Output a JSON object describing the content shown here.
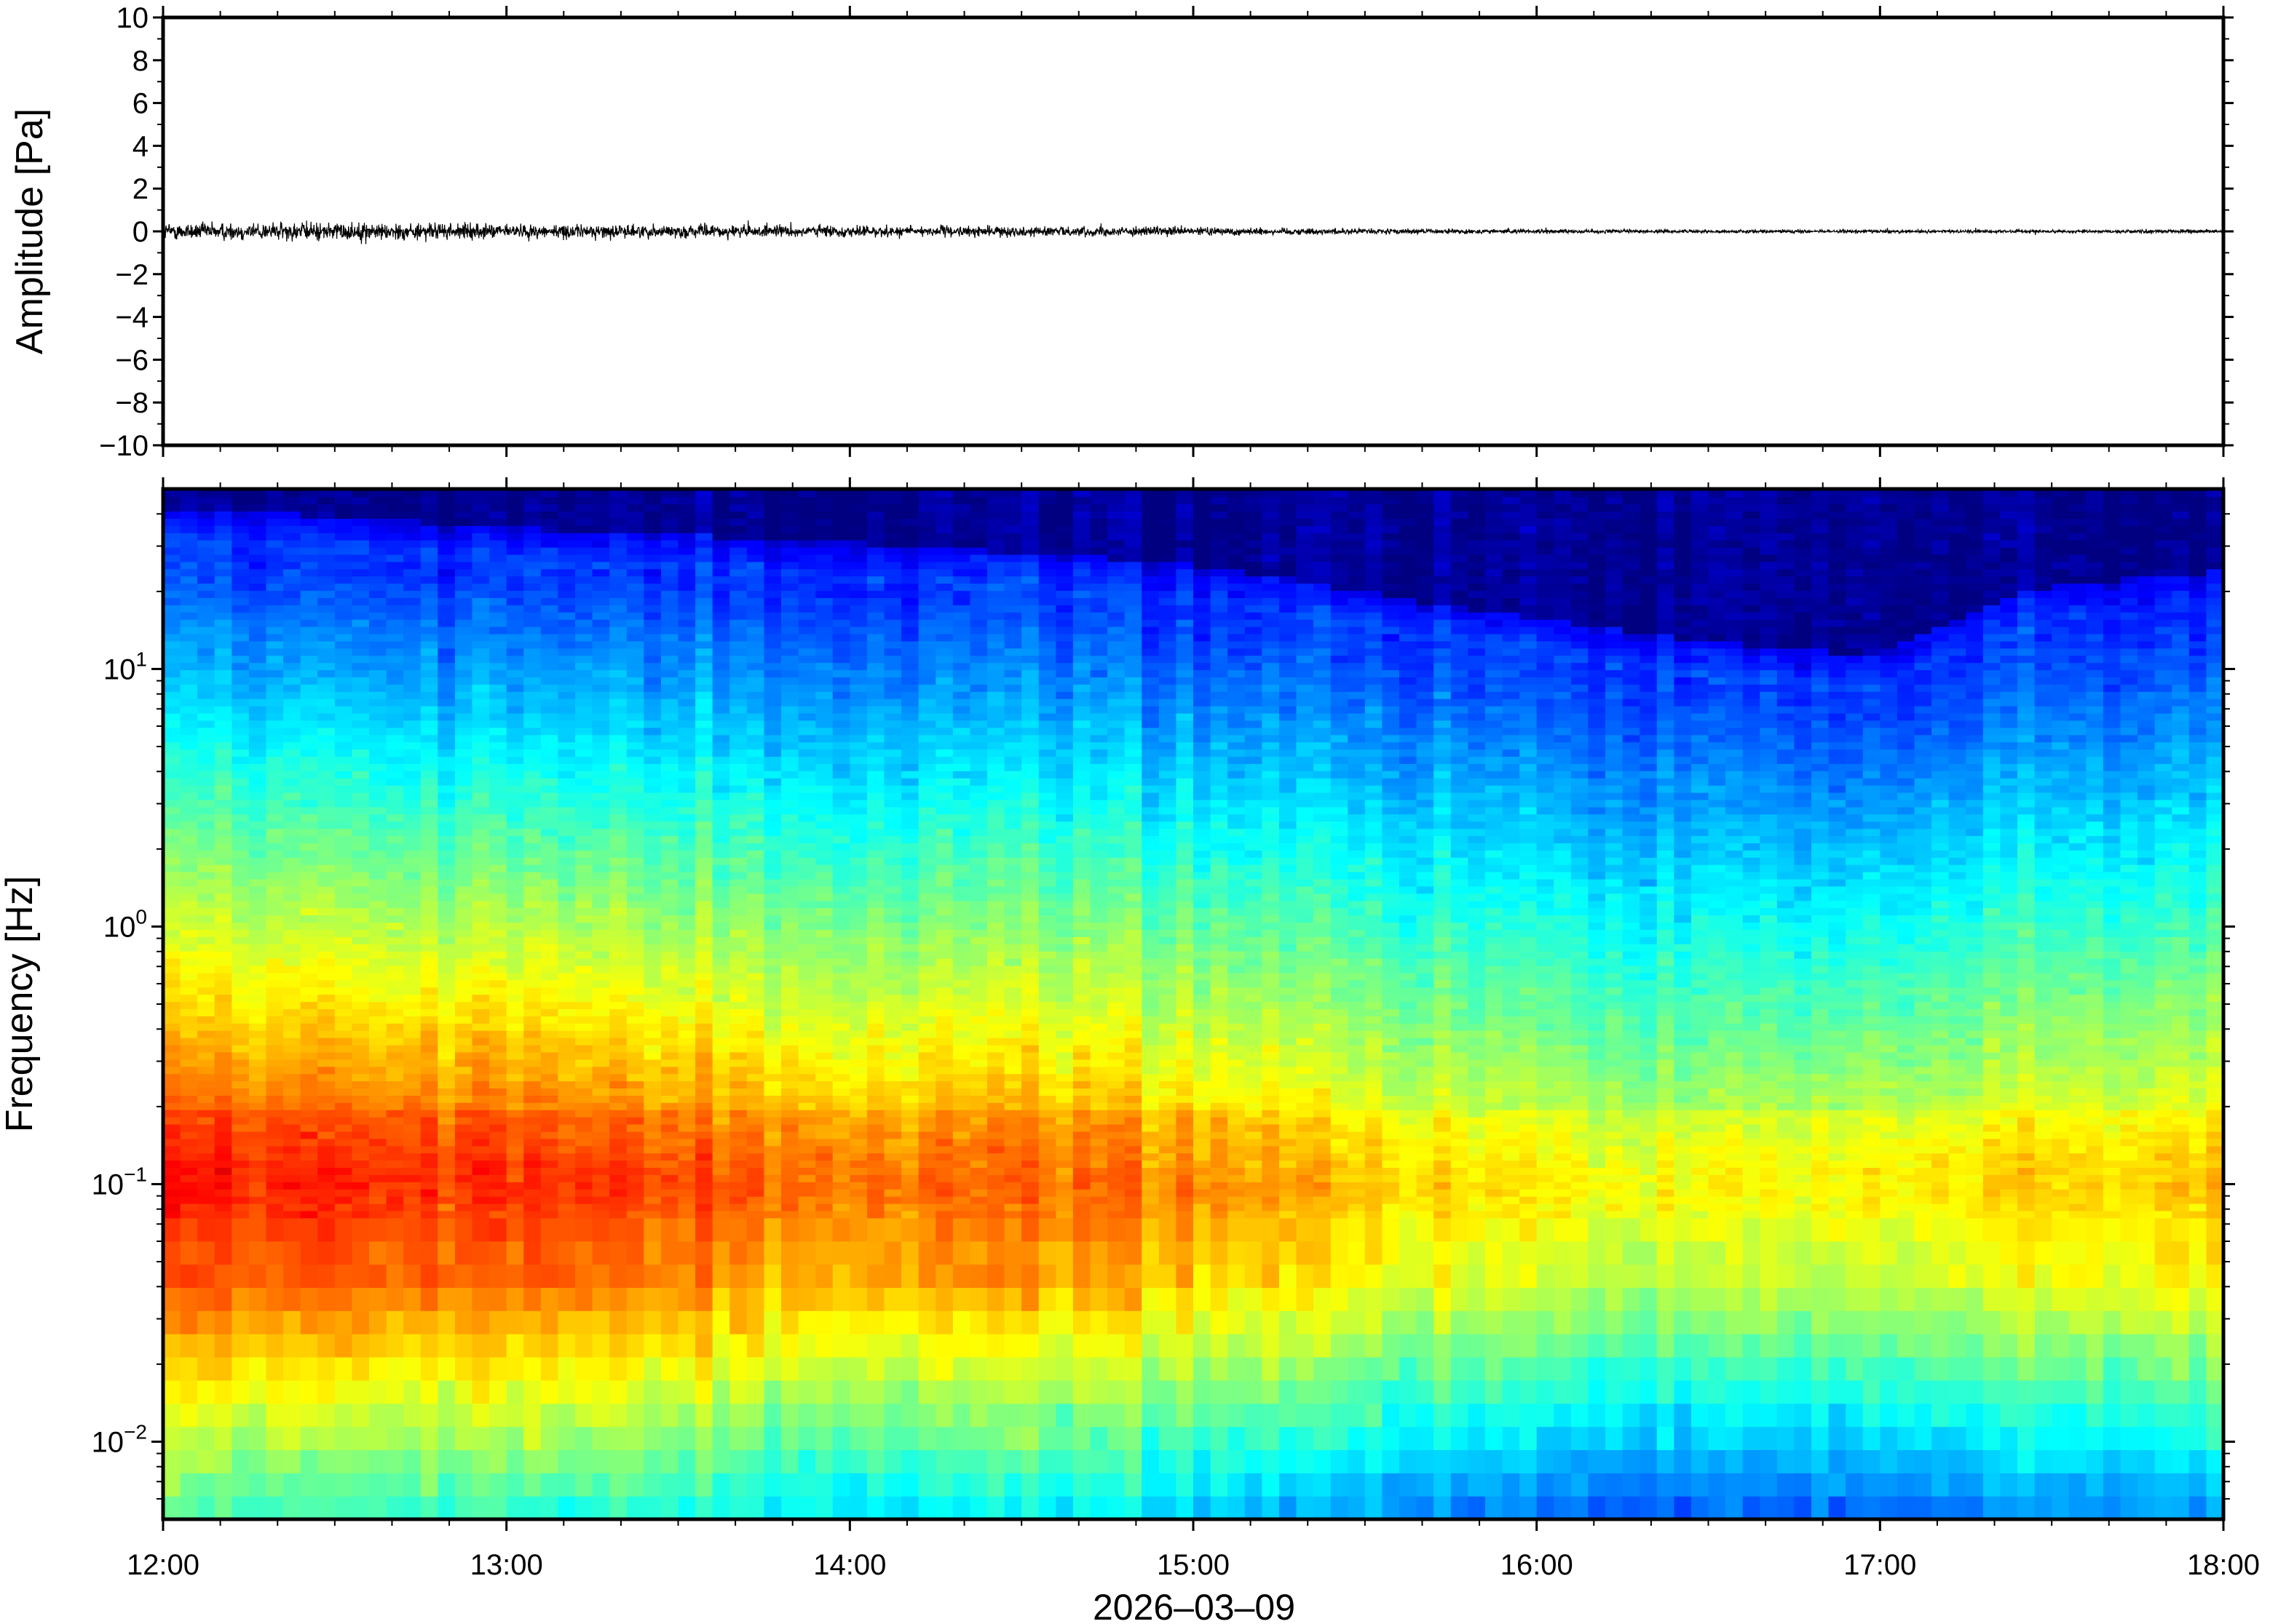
{
  "chart_data": [
    {
      "type": "line",
      "panel": "waveform",
      "ylabel": "Amplitude [Pa]",
      "ylim": [
        -10,
        10
      ],
      "y_ticks": [
        10,
        8,
        6,
        4,
        2,
        0,
        -2,
        -4,
        -6,
        -8,
        -10
      ],
      "y_tick_labels": [
        "10",
        "8",
        "6",
        "4",
        "2",
        "0",
        "−2",
        "−4",
        "−6",
        "−8",
        "−10"
      ],
      "x_range": [
        "12:00",
        "18:00"
      ],
      "series": [
        {
          "color": "#000000",
          "envelope": {
            "time": [
              "12:00",
              "12:30",
              "13:00",
              "13:30",
              "14:00",
              "14:30",
              "15:00",
              "15:30",
              "16:00",
              "16:30",
              "17:00",
              "17:30",
              "18:00"
            ],
            "amplitude": [
              0.6,
              0.65,
              0.5,
              0.45,
              0.4,
              0.35,
              0.3,
              0.2,
              0.15,
              0.12,
              0.12,
              0.12,
              0.14
            ]
          }
        }
      ]
    },
    {
      "type": "heatmap",
      "panel": "spectrogram",
      "ylabel": "Frequency [Hz]",
      "y_scale": "log",
      "ylim": [
        0.005,
        50
      ],
      "y_ticks": [
        {
          "value": 0.01,
          "base": "10",
          "exp": "−2"
        },
        {
          "value": 0.1,
          "base": "10",
          "exp": "−1"
        },
        {
          "value": 1,
          "base": "10",
          "exp": "0"
        },
        {
          "value": 10,
          "base": "10",
          "exp": "1"
        }
      ],
      "x_tick_labels": [
        "12:00",
        "13:00",
        "14:00",
        "15:00",
        "16:00",
        "17:00",
        "18:00"
      ],
      "x_date_label": "2026–03–09",
      "colormap": "jet",
      "intensity_profile": {
        "time": [
          "12:00",
          "13:00",
          "14:00",
          "15:00",
          "15:30",
          "16:00",
          "16:30",
          "17:00",
          "17:30",
          "18:00"
        ],
        "upper_cutoff_hz": [
          30,
          25,
          22,
          18,
          14,
          11,
          9,
          8,
          15,
          17
        ],
        "peak_band_hz": [
          0.05,
          0.2
        ],
        "peak_level": [
          0.82,
          0.8,
          0.74,
          0.72,
          0.64,
          0.6,
          0.58,
          0.6,
          0.64,
          0.66
        ]
      }
    }
  ]
}
